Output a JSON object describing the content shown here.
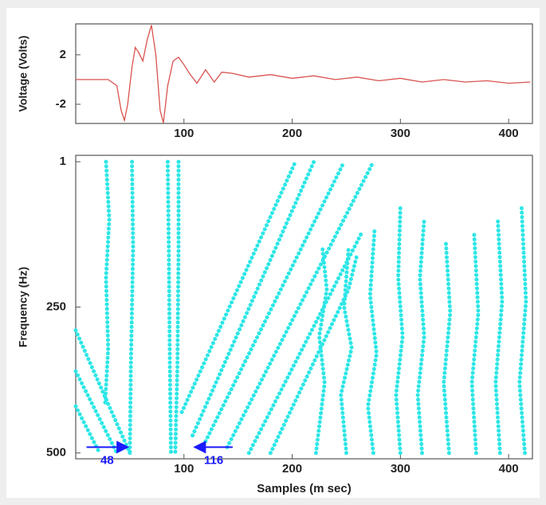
{
  "chart_data": [
    {
      "type": "line",
      "y_label": "Voltage (Volts)",
      "xlim": [
        0,
        422
      ],
      "ylim": [
        -3.55,
        4.5
      ],
      "xticks": [
        100,
        200,
        300,
        400
      ],
      "yticks": [
        -2,
        2
      ],
      "series": [
        {
          "color": "#d9534f",
          "x": [
            0,
            20,
            30,
            38,
            42,
            45,
            48,
            52,
            55,
            58,
            62,
            66,
            70,
            74,
            78,
            81,
            85,
            90,
            95,
            100,
            105,
            112,
            120,
            128,
            135,
            145,
            160,
            180,
            200,
            220,
            240,
            260,
            280,
            300,
            320,
            340,
            360,
            380,
            400,
            420
          ],
          "values": [
            0,
            0,
            0,
            -0.5,
            -2.5,
            -3.3,
            -2,
            1,
            2.6,
            2.2,
            1.5,
            3.2,
            4.4,
            2,
            -2.5,
            -3.5,
            -0.5,
            1.5,
            1.8,
            1.2,
            0.5,
            -0.3,
            0.8,
            -0.2,
            0.6,
            0.5,
            0.2,
            0.4,
            0.1,
            0.3,
            0,
            0.2,
            -0.1,
            0.1,
            -0.2,
            0,
            -0.2,
            -0.1,
            -0.3,
            -0.2
          ]
        }
      ]
    },
    {
      "type": "ridges",
      "x_label": "Samples (m sec)",
      "y_label": "Frequency (Hz)",
      "xlim": [
        0,
        422
      ],
      "ylim": [
        510,
        -10
      ],
      "xticks": [
        100,
        200,
        300,
        400
      ],
      "yticks": [
        1,
        250,
        500
      ],
      "color": "#2ee6e6",
      "series": [
        {
          "x": [
            28,
            31,
            28,
            30,
            27
          ],
          "values": [
            1,
            100,
            200,
            320,
            420
          ]
        },
        {
          "x": [
            52,
            53,
            51,
            50
          ],
          "values": [
            1,
            150,
            350,
            500
          ]
        },
        {
          "x": [
            85,
            86,
            87,
            88
          ],
          "values": [
            1,
            150,
            350,
            500
          ]
        },
        {
          "x": [
            95,
            95,
            94,
            92
          ],
          "values": [
            1,
            150,
            350,
            500
          ]
        },
        {
          "x": [
            0,
            50
          ],
          "values": [
            290,
            500
          ]
        },
        {
          "x": [
            0,
            38
          ],
          "values": [
            360,
            500
          ]
        },
        {
          "x": [
            0,
            22
          ],
          "values": [
            420,
            500
          ]
        },
        {
          "x": [
            98,
            203
          ],
          "values": [
            430,
            1
          ]
        },
        {
          "x": [
            108,
            220
          ],
          "values": [
            470,
            1
          ]
        },
        {
          "x": [
            120,
            248
          ],
          "values": [
            480,
            1
          ]
        },
        {
          "x": [
            140,
            275
          ],
          "values": [
            490,
            1
          ]
        },
        {
          "x": [
            160,
            265
          ],
          "values": [
            500,
            120
          ]
        },
        {
          "x": [
            180,
            252,
            260
          ],
          "values": [
            500,
            220,
            160
          ]
        },
        {
          "x": [
            222,
            230,
            225,
            232,
            228
          ],
          "values": [
            500,
            380,
            300,
            220,
            150
          ]
        },
        {
          "x": [
            250,
            245,
            255,
            248,
            252
          ],
          "values": [
            500,
            400,
            320,
            250,
            150
          ]
        },
        {
          "x": [
            275,
            270,
            278,
            272,
            276
          ],
          "values": [
            500,
            420,
            330,
            230,
            120
          ]
        },
        {
          "x": [
            300,
            296,
            302,
            298,
            300
          ],
          "values": [
            500,
            400,
            300,
            200,
            80
          ]
        },
        {
          "x": [
            320,
            316,
            322,
            318,
            322
          ],
          "values": [
            500,
            400,
            300,
            200,
            100
          ]
        },
        {
          "x": [
            345,
            340,
            346,
            342
          ],
          "values": [
            500,
            380,
            260,
            140
          ]
        },
        {
          "x": [
            370,
            366,
            372,
            368
          ],
          "values": [
            500,
            380,
            260,
            120
          ]
        },
        {
          "x": [
            392,
            388,
            394,
            390
          ],
          "values": [
            500,
            380,
            240,
            100
          ]
        },
        {
          "x": [
            415,
            410,
            416,
            412
          ],
          "values": [
            500,
            380,
            240,
            80
          ]
        }
      ],
      "annotations": [
        {
          "text": "48",
          "x_from": 10,
          "x_to": 48,
          "y": 490
        },
        {
          "text": "116",
          "x_from": 145,
          "x_to": 110,
          "y": 490
        }
      ]
    }
  ]
}
